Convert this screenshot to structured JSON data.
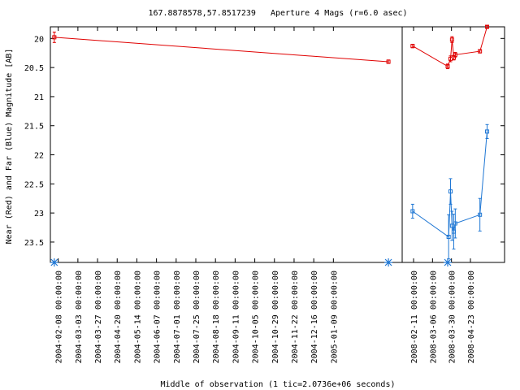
{
  "chart_data": {
    "type": "scatter",
    "title": "167.8878578,57.8517239   Aperture 4 Mags (r=6.0 asec)",
    "ylabel": "Near (Red) and Far (Blue) Magnitude [AB]",
    "xlabel": "Middle of observation (1 tic=2.0736e+06 seconds)",
    "y_reversed": true,
    "ylim": [
      23.85,
      19.8
    ],
    "yticks": [
      "20",
      "20.5",
      "21",
      "21.5",
      "22",
      "22.5",
      "23",
      "23.5"
    ],
    "y_tick_values": [
      20,
      20.5,
      21,
      21.5,
      22,
      22.5,
      23,
      23.5
    ],
    "panels": [
      {
        "name": "left",
        "xlim": [
          -0.4,
          17.5
        ],
        "xticks": [
          {
            "x": 0,
            "label": "2004-02-08 00:00:00"
          },
          {
            "x": 1,
            "label": "2004-03-03 00:00:00"
          },
          {
            "x": 2,
            "label": "2004-03-27 00:00:00"
          },
          {
            "x": 3,
            "label": "2004-04-20 00:00:00"
          },
          {
            "x": 4,
            "label": "2004-05-14 00:00:00"
          },
          {
            "x": 5,
            "label": "2004-06-07 00:00:00"
          },
          {
            "x": 6,
            "label": "2004-07-01 00:00:00"
          },
          {
            "x": 7,
            "label": "2004-07-25 00:00:00"
          },
          {
            "x": 8,
            "label": "2004-08-18 00:00:00"
          },
          {
            "x": 9,
            "label": "2004-09-11 00:00:00"
          },
          {
            "x": 10,
            "label": "2004-10-05 00:00:00"
          },
          {
            "x": 11,
            "label": "2004-10-29 00:00:00"
          },
          {
            "x": 12,
            "label": "2004-11-22 00:00:00"
          },
          {
            "x": 13,
            "label": "2004-12-16 00:00:00"
          },
          {
            "x": 14,
            "label": "2005-01-09 00:00:00"
          }
        ],
        "red": [
          {
            "x": -0.2,
            "y": 19.98,
            "err": 0.09
          },
          {
            "x": 16.8,
            "y": 20.4,
            "err": 0.03
          }
        ],
        "blue": [],
        "asterisks": [
          -0.2,
          16.8
        ]
      },
      {
        "name": "right",
        "xlim": [
          -0.6,
          4.8
        ],
        "xticks": [
          {
            "x": 0,
            "label": "2008-02-11 00:00:00"
          },
          {
            "x": 1,
            "label": "2008-03-06 00:00:00"
          },
          {
            "x": 2,
            "label": "2008-03-30 00:00:00"
          },
          {
            "x": 3,
            "label": "2008-04-23 00:00:00"
          }
        ],
        "red": [
          {
            "x": -0.05,
            "y": 20.13,
            "err": 0.03
          },
          {
            "x": 1.8,
            "y": 20.48,
            "err": 0.04
          },
          {
            "x": 1.95,
            "y": 20.35,
            "err": 0.05
          },
          {
            "x": 2.03,
            "y": 20.02,
            "err": 0.05
          },
          {
            "x": 2.12,
            "y": 20.33,
            "err": 0.04
          },
          {
            "x": 2.2,
            "y": 20.28,
            "err": 0.04
          },
          {
            "x": 3.5,
            "y": 20.22,
            "err": 0.03
          },
          {
            "x": 3.88,
            "y": 19.8,
            "err": 0.02
          }
        ],
        "blue": [
          {
            "x": -0.05,
            "y": 22.97,
            "err": 0.12
          },
          {
            "x": 1.85,
            "y": 23.41,
            "err": 0.38
          },
          {
            "x": 1.95,
            "y": 22.63,
            "err": 0.22
          },
          {
            "x": 2.03,
            "y": 23.22,
            "err": 0.25
          },
          {
            "x": 2.12,
            "y": 23.32,
            "err": 0.3
          },
          {
            "x": 2.2,
            "y": 23.18,
            "err": 0.25
          },
          {
            "x": 3.5,
            "y": 23.03,
            "err": 0.28
          },
          {
            "x": 3.88,
            "y": 21.6,
            "err": 0.12
          }
        ],
        "asterisks": [
          1.8
        ]
      }
    ],
    "colors": {
      "red": "#e00000",
      "blue": "#1f77d4",
      "asterisk": "#1f77d4",
      "axis": "#000000"
    },
    "grid": false,
    "legend": "none"
  }
}
